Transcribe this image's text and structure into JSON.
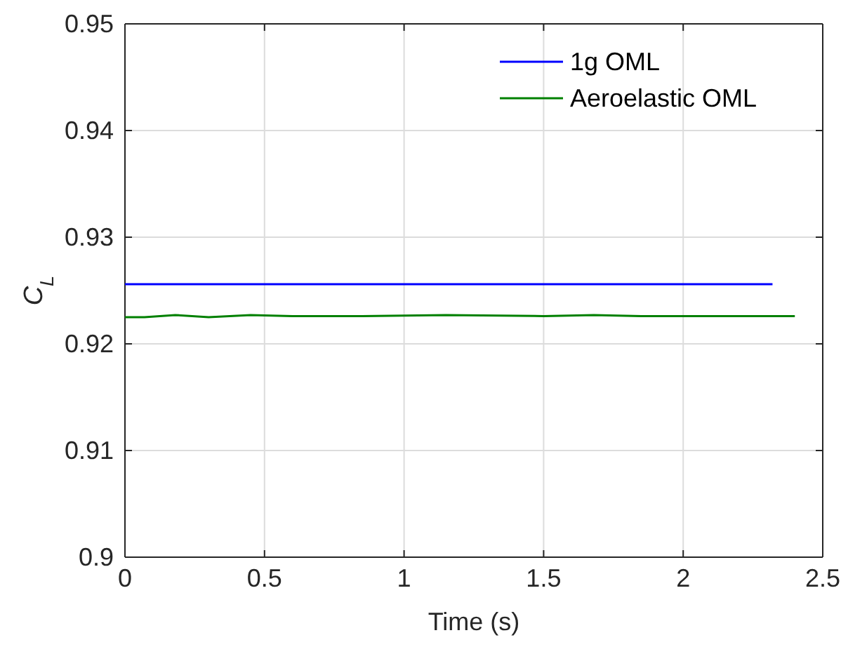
{
  "chart_data": {
    "type": "line",
    "xlabel": "Time (s)",
    "ylabel": "C$_{L}$",
    "xlim": [
      0,
      2.5
    ],
    "xticks": [
      0,
      0.5,
      1,
      1.5,
      2,
      2.5
    ],
    "ylim": [
      0.9,
      0.95
    ],
    "yticks": [
      0.9,
      0.91,
      0.92,
      0.93,
      0.94,
      0.95
    ],
    "grid": true,
    "legend": "top right",
    "line_style": "solid",
    "marker": "none",
    "series": [
      {
        "name": "1g OML",
        "color": "#0000ff",
        "x": [
          0,
          0.05,
          0.1,
          0.2,
          0.5,
          1,
          1.5,
          2,
          2.32
        ],
        "values": [
          0.9256,
          0.9256,
          0.9256,
          0.9256,
          0.9256,
          0.9256,
          0.9256,
          0.9256,
          0.9256
        ]
      },
      {
        "name": "Aeroelastic OML",
        "color": "#008000",
        "x": [
          0,
          0.07,
          0.18,
          0.3,
          0.45,
          0.6,
          0.85,
          1.15,
          1.5,
          1.68,
          1.85,
          2.1,
          2.4
        ],
        "values": [
          0.9225,
          0.9225,
          0.9227,
          0.9225,
          0.9227,
          0.9226,
          0.9226,
          0.9227,
          0.9226,
          0.9227,
          0.9226,
          0.9226,
          0.9226
        ]
      }
    ]
  }
}
